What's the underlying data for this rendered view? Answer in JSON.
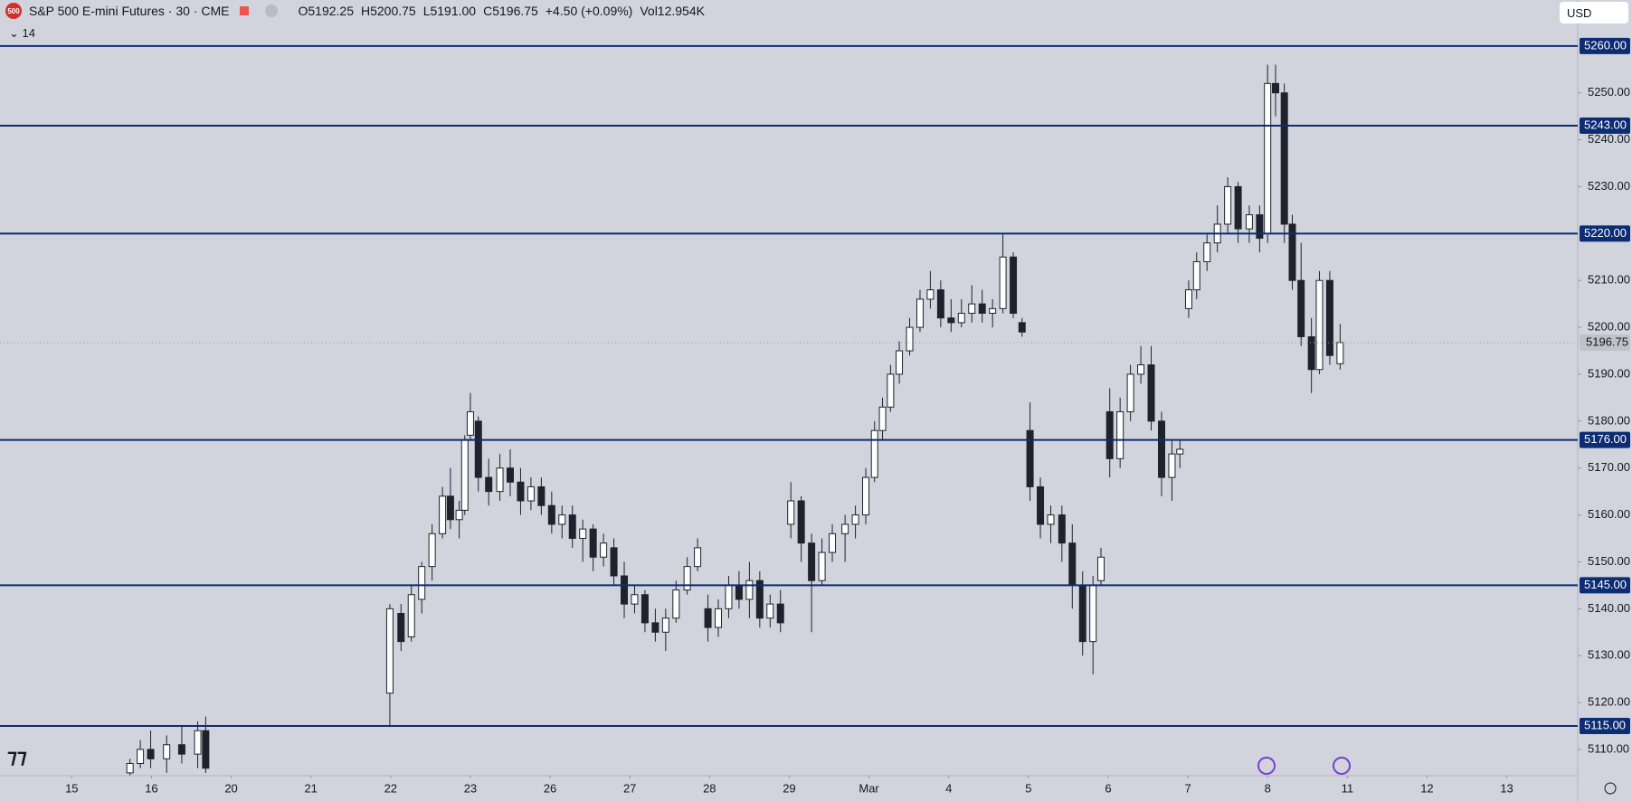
{
  "header": {
    "logo": "500",
    "title": "S&P 500 E-mini Futures · 30 · CME",
    "ohlc": [
      "O5192.25",
      "H5200.75",
      "L5191.00",
      "C5196.75"
    ],
    "change": "+4.50 (+0.09%)",
    "volume": "Vol12.954K",
    "indicator_count": "14",
    "currency": "USD"
  },
  "chart_data": {
    "type": "candlestick",
    "xlim": [
      -0.9,
      18.89
    ],
    "xticks": [
      {
        "value": 0,
        "label": "15"
      },
      {
        "value": 1,
        "label": "16"
      },
      {
        "value": 2,
        "label": "20"
      },
      {
        "value": 3,
        "label": "21"
      },
      {
        "value": 4,
        "label": "22"
      },
      {
        "value": 5,
        "label": "23"
      },
      {
        "value": 6,
        "label": "26"
      },
      {
        "value": 7,
        "label": "27"
      },
      {
        "value": 8,
        "label": "28"
      },
      {
        "value": 9,
        "label": "29"
      },
      {
        "value": 10,
        "label": "Mar"
      },
      {
        "value": 11,
        "label": "4"
      },
      {
        "value": 12,
        "label": "5"
      },
      {
        "value": 13,
        "label": "6"
      },
      {
        "value": 14,
        "label": "7"
      },
      {
        "value": 15,
        "label": "8"
      },
      {
        "value": 16,
        "label": "11"
      },
      {
        "value": 17,
        "label": "12"
      },
      {
        "value": 18,
        "label": "13"
      }
    ],
    "ylim": [
      5104.4,
      5269.8
    ],
    "yticks": [
      {
        "value": 5110,
        "label": "5110.00"
      },
      {
        "value": 5120,
        "label": "5120.00"
      },
      {
        "value": 5130,
        "label": "5130.00"
      },
      {
        "value": 5140,
        "label": "5140.00"
      },
      {
        "value": 5150,
        "label": "5150.00"
      },
      {
        "value": 5160,
        "label": "5160.00"
      },
      {
        "value": 5170,
        "label": "5170.00"
      },
      {
        "value": 5180,
        "label": "5180.00"
      },
      {
        "value": 5190,
        "label": "5190.00"
      },
      {
        "value": 5200,
        "label": "5200.00"
      },
      {
        "value": 5210,
        "label": "5210.00"
      },
      {
        "value": 5230,
        "label": "5230.00"
      },
      {
        "value": 5240,
        "label": "5240.00"
      },
      {
        "value": 5250,
        "label": "5250.00"
      }
    ],
    "up_color": "#ffffff",
    "down_color": "#1e222d",
    "candles": {
      "x": [
        0.73,
        0.86,
        0.99,
        1.19,
        1.38,
        1.58,
        1.68,
        3.99,
        4.13,
        4.26,
        4.39,
        4.52,
        4.65,
        4.75,
        4.86,
        4.93,
        5.0,
        5.1,
        5.23,
        5.37,
        5.5,
        5.63,
        5.76,
        5.89,
        6.02,
        6.15,
        6.28,
        6.41,
        6.54,
        6.67,
        6.8,
        6.93,
        7.06,
        7.19,
        7.32,
        7.45,
        7.58,
        7.72,
        7.85,
        7.98,
        8.11,
        8.24,
        8.37,
        8.5,
        8.63,
        8.76,
        8.89,
        9.02,
        9.15,
        9.28,
        9.41,
        9.54,
        9.7,
        9.83,
        9.96,
        10.07,
        10.17,
        10.27,
        10.38,
        10.51,
        10.64,
        10.77,
        10.9,
        11.03,
        11.16,
        11.29,
        11.42,
        11.55,
        11.68,
        11.81,
        11.92,
        12.02,
        12.15,
        12.28,
        12.42,
        12.55,
        12.68,
        12.81,
        12.91,
        13.02,
        13.15,
        13.28,
        13.41,
        13.54,
        13.67,
        13.8,
        13.9,
        14.01,
        14.11,
        14.24,
        14.37,
        14.5,
        14.63,
        14.77,
        14.9,
        15.0,
        15.1,
        15.21,
        15.31,
        15.42,
        15.55,
        15.65,
        15.78,
        15.91
      ],
      "open": [
        5105,
        5107,
        5110,
        5108,
        5111,
        5109,
        5114,
        5122,
        5139,
        5134,
        5142,
        5149,
        5156,
        5164,
        5159,
        5161,
        5177,
        5180,
        5168,
        5165,
        5170,
        5167,
        5163,
        5166,
        5162,
        5158,
        5160,
        5155,
        5157,
        5151,
        5153,
        5147,
        5141,
        5143,
        5137,
        5135,
        5138,
        5144,
        5149,
        5140,
        5136,
        5140,
        5145,
        5142,
        5146,
        5138,
        5141,
        5158,
        5163,
        5154,
        5146,
        5152,
        5156,
        5158,
        5160,
        5168,
        5178,
        5183,
        5190,
        5195,
        5200,
        5206,
        5208,
        5202,
        5201,
        5203,
        5205,
        5203,
        5204,
        5215,
        5201,
        5178,
        5166,
        5158,
        5160,
        5154,
        5145,
        5133,
        5146,
        5182,
        5172,
        5182,
        5190,
        5192,
        5180,
        5168,
        5173,
        5204,
        5208,
        5214,
        5218,
        5222,
        5230,
        5221,
        5224,
        5220,
        5252,
        5250,
        5222,
        5210,
        5198,
        5191,
        5210,
        5192.25
      ],
      "high": [
        5108,
        5112,
        5114,
        5113,
        5115,
        5116,
        5117,
        5141,
        5141,
        5145,
        5150,
        5158,
        5166,
        5170,
        5163,
        5177,
        5186,
        5181,
        5172,
        5173,
        5174,
        5170,
        5168,
        5168,
        5165,
        5162,
        5162,
        5159,
        5158,
        5156,
        5155,
        5150,
        5145,
        5144,
        5140,
        5140,
        5146,
        5151,
        5155,
        5143,
        5142,
        5147,
        5148,
        5150,
        5148,
        5143,
        5144,
        5167,
        5164,
        5156,
        5155,
        5158,
        5160,
        5162,
        5170,
        5180,
        5185,
        5192,
        5197,
        5202,
        5208,
        5212,
        5210,
        5206,
        5206,
        5209,
        5208,
        5206,
        5220,
        5216,
        5202,
        5184,
        5168,
        5162,
        5162,
        5158,
        5148,
        5147,
        5153,
        5187,
        5185,
        5192,
        5196,
        5196,
        5182,
        5176,
        5176,
        5210,
        5216,
        5220,
        5226,
        5232,
        5231,
        5226,
        5226,
        5256,
        5256,
        5252,
        5224,
        5218,
        5202,
        5212,
        5212,
        5200.75
      ],
      "low": [
        5104.5,
        5106,
        5106,
        5105,
        5107,
        5106,
        5105,
        5115,
        5131,
        5133,
        5139,
        5146,
        5155,
        5157,
        5155,
        5160,
        5176,
        5165,
        5162,
        5163,
        5164,
        5160,
        5161,
        5160,
        5156,
        5155,
        5153,
        5150,
        5148,
        5149,
        5145,
        5138,
        5139,
        5135,
        5133,
        5131,
        5137,
        5143,
        5148,
        5133,
        5134,
        5138,
        5140,
        5138,
        5136,
        5136,
        5135,
        5155,
        5150,
        5135,
        5145,
        5150,
        5150,
        5155,
        5158,
        5167,
        5176,
        5182,
        5188,
        5194,
        5199,
        5204,
        5200,
        5199,
        5200,
        5201,
        5201,
        5200,
        5203,
        5202,
        5198,
        5163,
        5155,
        5154,
        5150,
        5140,
        5130,
        5126,
        5145,
        5168,
        5170,
        5180,
        5188,
        5178,
        5164,
        5163,
        5170,
        5202,
        5206,
        5212,
        5216,
        5220,
        5218,
        5218,
        5216,
        5218,
        5245,
        5218,
        5208,
        5196,
        5186,
        5190,
        5192,
        5191
      ],
      "close": [
        5107,
        5110,
        5108,
        5111,
        5109,
        5114,
        5106,
        5140,
        5133,
        5143,
        5149,
        5156,
        5164,
        5159,
        5161,
        5176,
        5182,
        5168,
        5165,
        5170,
        5167,
        5163,
        5166,
        5162,
        5158,
        5160,
        5155,
        5157,
        5151,
        5154,
        5147,
        5141,
        5143,
        5137,
        5135,
        5138,
        5144,
        5149,
        5153,
        5136,
        5140,
        5145,
        5142,
        5146,
        5138,
        5141,
        5137,
        5163,
        5154,
        5146,
        5152,
        5156,
        5158,
        5160,
        5168,
        5178,
        5183,
        5190,
        5195,
        5200,
        5206,
        5208,
        5202,
        5201,
        5203,
        5205,
        5203,
        5204,
        5215,
        5203,
        5199,
        5166,
        5158,
        5160,
        5154,
        5145,
        5133,
        5145,
        5151,
        5172,
        5182,
        5190,
        5192,
        5180,
        5168,
        5173,
        5174,
        5208,
        5214,
        5218,
        5222,
        5230,
        5221,
        5224,
        5219,
        5252,
        5250,
        5222,
        5210,
        5198,
        5191,
        5210,
        5194,
        5196.75
      ]
    },
    "levels": {
      "values": [
        5260,
        5243,
        5220,
        5176,
        5145,
        5115
      ],
      "value_labels": [
        "5260.00",
        "5243.00",
        "5220.00",
        "5176.00",
        "5145.00",
        "5115.00"
      ],
      "color": "#0c2c74"
    },
    "last_price": 5196.75
  }
}
